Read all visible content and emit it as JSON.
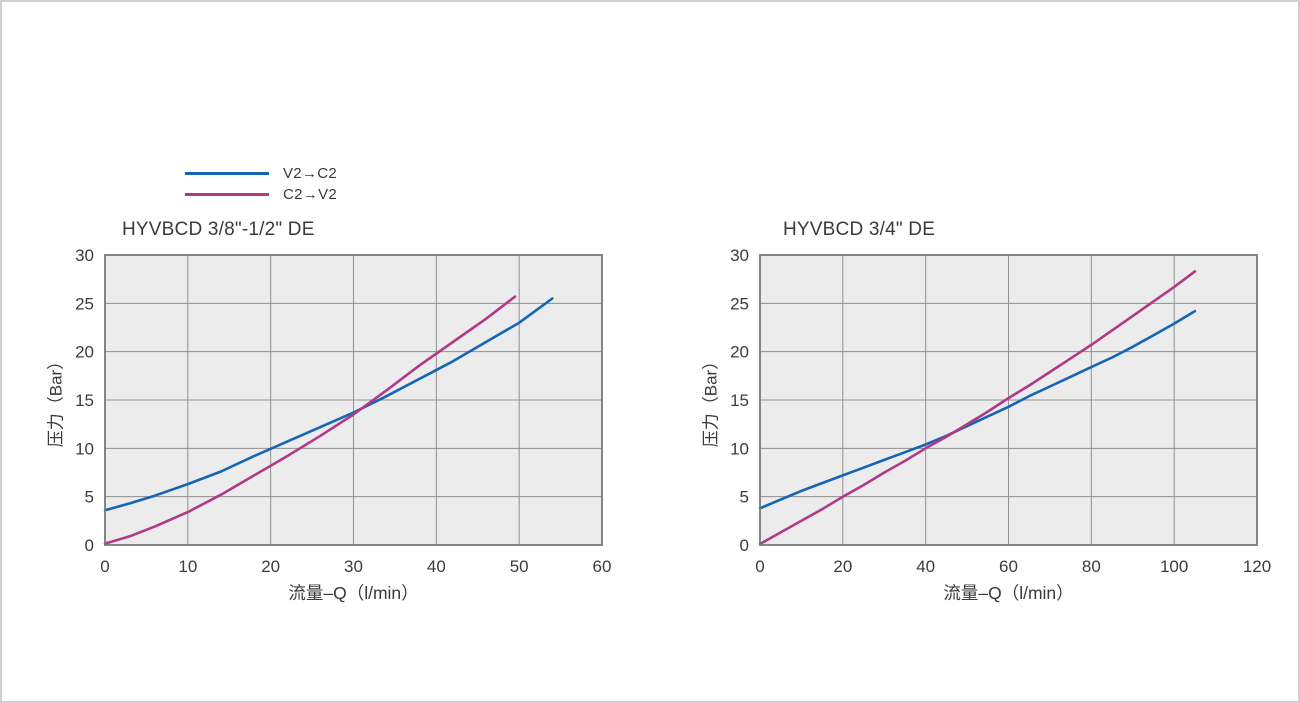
{
  "legend": {
    "items": [
      {
        "label": "V2→C2",
        "color": "#1565b5"
      },
      {
        "label": "C2→V2",
        "color": "#b03a87"
      }
    ]
  },
  "chart_data": [
    {
      "type": "line",
      "title": "HYVBCD 3/8\"-1/2\" DE",
      "xlabel": "流量–Q（l/min）",
      "ylabel": "压力（Bar）",
      "xlim": [
        0,
        60
      ],
      "ylim": [
        0,
        30
      ],
      "xticks": [
        0,
        10,
        20,
        30,
        40,
        50,
        60
      ],
      "yticks": [
        0,
        5,
        10,
        15,
        20,
        25,
        30
      ],
      "grid": true,
      "legend_position": "top-left-of-page",
      "series": [
        {
          "name": "V2→C2",
          "color": "#1565b5",
          "points": [
            [
              0,
              3.6
            ],
            [
              3,
              4.3
            ],
            [
              6,
              5.1
            ],
            [
              10,
              6.3
            ],
            [
              14,
              7.6
            ],
            [
              18,
              9.2
            ],
            [
              22,
              10.7
            ],
            [
              26,
              12.2
            ],
            [
              30,
              13.7
            ],
            [
              34,
              15.4
            ],
            [
              38,
              17.2
            ],
            [
              42,
              19.0
            ],
            [
              46,
              21.0
            ],
            [
              50,
              23.0
            ],
            [
              54,
              25.5
            ]
          ]
        },
        {
          "name": "C2→V2",
          "color": "#b03a87",
          "points": [
            [
              0,
              0.15
            ],
            [
              3,
              0.9
            ],
            [
              6,
              1.9
            ],
            [
              10,
              3.4
            ],
            [
              14,
              5.2
            ],
            [
              18,
              7.2
            ],
            [
              22,
              9.2
            ],
            [
              26,
              11.3
            ],
            [
              30,
              13.5
            ],
            [
              34,
              16.0
            ],
            [
              38,
              18.6
            ],
            [
              42,
              21.0
            ],
            [
              46,
              23.4
            ],
            [
              49.5,
              25.7
            ]
          ]
        }
      ]
    },
    {
      "type": "line",
      "title": "HYVBCD 3/4\" DE",
      "xlabel": "流量–Q（l/min）",
      "ylabel": "压力（Bar）",
      "xlim": [
        0,
        120
      ],
      "ylim": [
        0,
        30
      ],
      "xticks": [
        0,
        20,
        40,
        60,
        80,
        100,
        120
      ],
      "yticks": [
        0,
        5,
        10,
        15,
        20,
        25,
        30
      ],
      "grid": true,
      "series": [
        {
          "name": "V2→C2",
          "color": "#1565b5",
          "points": [
            [
              0,
              3.8
            ],
            [
              5,
              4.7
            ],
            [
              10,
              5.6
            ],
            [
              15,
              6.4
            ],
            [
              20,
              7.2
            ],
            [
              25,
              8.0
            ],
            [
              30,
              8.8
            ],
            [
              35,
              9.6
            ],
            [
              40,
              10.4
            ],
            [
              45,
              11.3
            ],
            [
              50,
              12.3
            ],
            [
              55,
              13.3
            ],
            [
              60,
              14.3
            ],
            [
              65,
              15.4
            ],
            [
              70,
              16.4
            ],
            [
              75,
              17.4
            ],
            [
              80,
              18.4
            ],
            [
              85,
              19.4
            ],
            [
              90,
              20.5
            ],
            [
              95,
              21.7
            ],
            [
              100,
              22.9
            ],
            [
              105,
              24.2
            ]
          ]
        },
        {
          "name": "C2→V2",
          "color": "#b03a87",
          "points": [
            [
              0,
              0.1
            ],
            [
              5,
              1.3
            ],
            [
              10,
              2.5
            ],
            [
              15,
              3.7
            ],
            [
              20,
              5.0
            ],
            [
              25,
              6.2
            ],
            [
              30,
              7.5
            ],
            [
              35,
              8.7
            ],
            [
              40,
              10.0
            ],
            [
              45,
              11.2
            ],
            [
              50,
              12.5
            ],
            [
              55,
              13.8
            ],
            [
              60,
              15.2
            ],
            [
              65,
              16.5
            ],
            [
              70,
              17.9
            ],
            [
              75,
              19.3
            ],
            [
              80,
              20.7
            ],
            [
              85,
              22.2
            ],
            [
              90,
              23.7
            ],
            [
              95,
              25.2
            ],
            [
              100,
              26.7
            ],
            [
              105,
              28.3
            ]
          ]
        }
      ]
    }
  ],
  "style": {
    "plot_background": "#ececec",
    "grid_color": "#8f8f8f",
    "plot_border_color": "#787878"
  }
}
